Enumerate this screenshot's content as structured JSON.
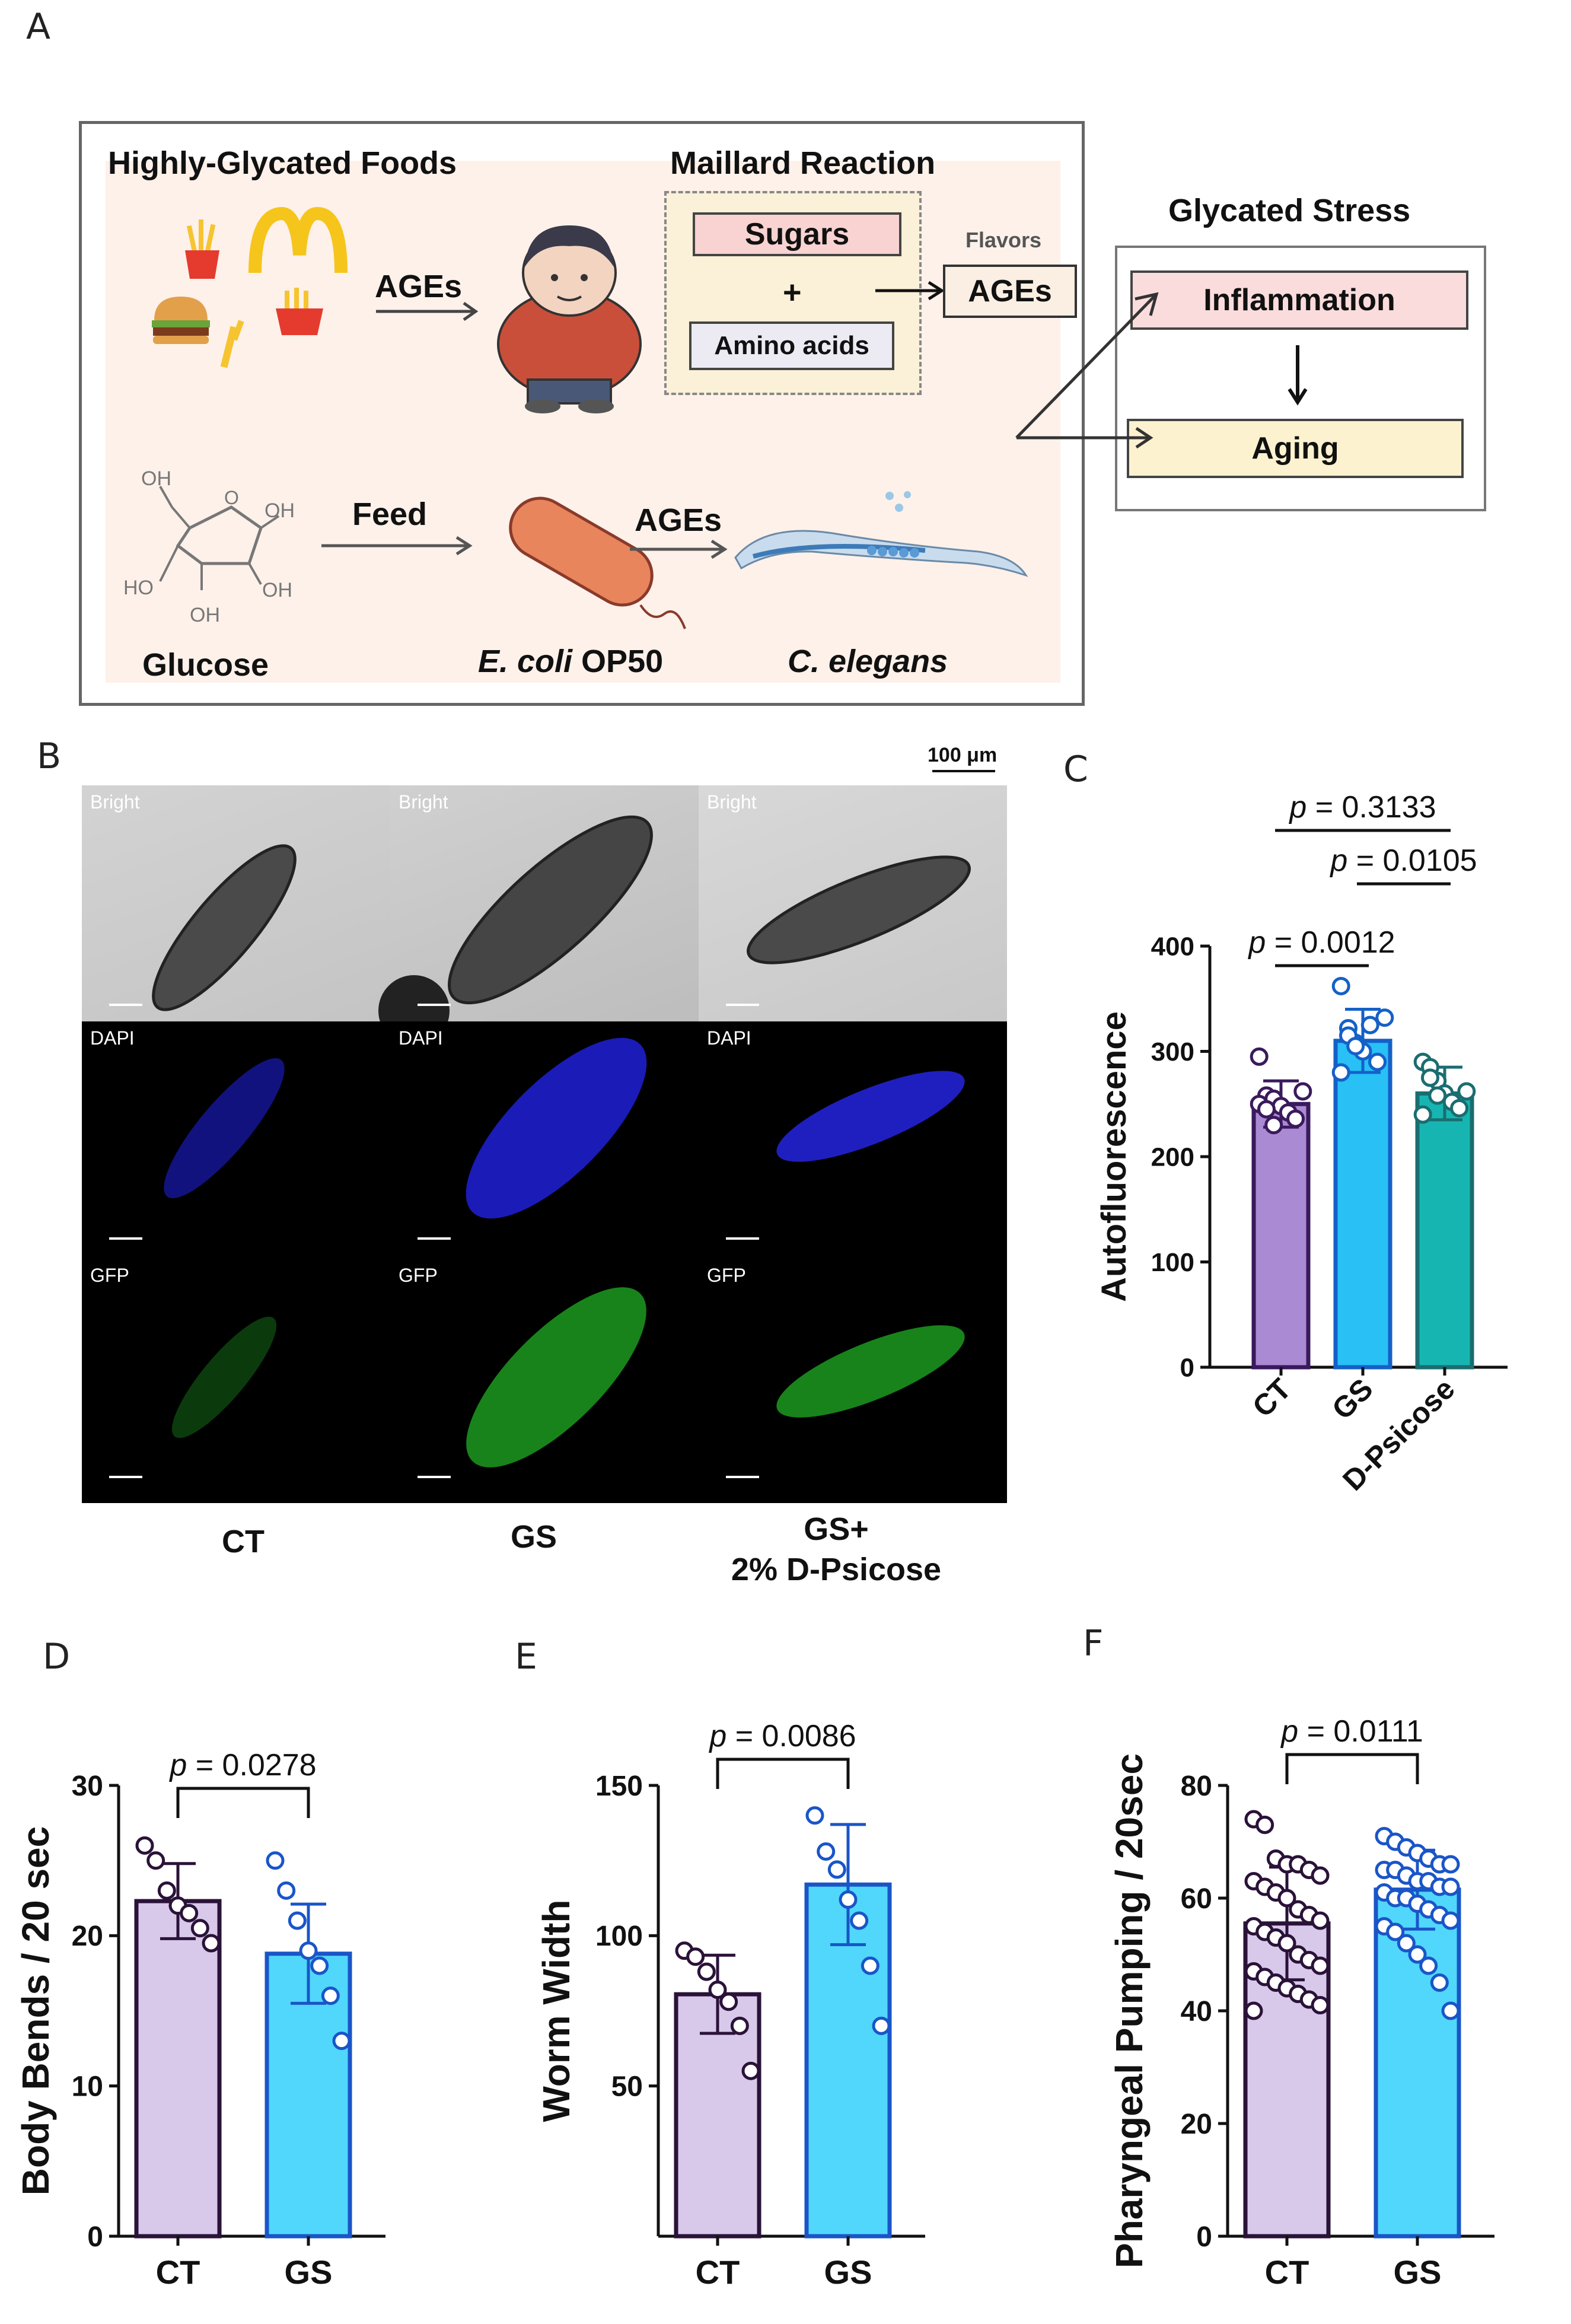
{
  "panel_letters": {
    "a": "A",
    "b": "B",
    "c": "C",
    "d": "D",
    "e": "E",
    "f": "F"
  },
  "panel_a": {
    "foods_title": "Highly-Glycated Foods",
    "maillard_title": "Maillard Reaction",
    "stress_title": "Glycated Stress",
    "ages_arrow_label": "AGEs",
    "sugars": "Sugars",
    "plus": "+",
    "amino_acids": "Amino acids",
    "flavors": "Flavors",
    "ages_box": "AGEs",
    "inflammation": "Inflammation",
    "aging": "Aging",
    "feed": "Feed",
    "ages_worm_label": "AGEs",
    "glucose": "Glucose",
    "ecoli_italic": "E. coli",
    "ecoli_rest": " OP50",
    "celegans": "C. elegans",
    "mol": {
      "oh_top": "OH",
      "oh_right_top": "OH",
      "ho_left": "HO",
      "oh_right_bottom": "OH",
      "oh_bottom": "OH",
      "ring_o": "O"
    },
    "colors": {
      "bg": "#fdf1ea",
      "sugars": "#f8d3d2",
      "amino": "#ecebf4",
      "ages": "#fbefe3",
      "inflammation": "#fbdcdc",
      "aging": "#fdf2cf"
    }
  },
  "panel_b": {
    "scale_label": "100 μm",
    "rows": [
      "Bright",
      "DAPI",
      "GFP"
    ],
    "conditions": [
      "CT",
      "GS",
      "GS+\n2% D-Psicose"
    ]
  },
  "chart_data": [
    {
      "id": "C",
      "type": "bar",
      "ylabel": "Autofluorescence",
      "ylim": [
        0,
        400
      ],
      "yticks": [
        0,
        100,
        200,
        300,
        400
      ],
      "categories": [
        "CT",
        "GS",
        "D-Psicose"
      ],
      "values": [
        250,
        310,
        260
      ],
      "errors": [
        22,
        30,
        25
      ],
      "colors": [
        "#a98ad3",
        "#28c0f5",
        "#17b5b2"
      ],
      "edge_colors": [
        "#3a1a5c",
        "#1560c8",
        "#1a6d70"
      ],
      "points": [
        [
          295,
          258,
          255,
          248,
          242,
          236,
          262,
          250,
          245,
          230
        ],
        [
          362,
          322,
          308,
          300,
          325,
          290,
          332,
          280,
          315,
          305
        ],
        [
          290,
          285,
          272,
          260,
          252,
          246,
          262,
          240,
          275,
          258
        ]
      ],
      "annotations": [
        {
          "p": "p",
          "text": " = 0.0012",
          "from": 0,
          "to": 1
        },
        {
          "p": "p",
          "text": " = 0.0105",
          "from": 1,
          "to": 2
        },
        {
          "p": "p",
          "text": " = 0.3133",
          "from": 0,
          "to": 2
        }
      ]
    },
    {
      "id": "D",
      "type": "bar",
      "ylabel": "Body Bends / 20 sec",
      "ylim": [
        0,
        30
      ],
      "yticks": [
        0,
        10,
        20,
        30
      ],
      "categories": [
        "CT",
        "GS"
      ],
      "values": [
        22.3,
        18.8
      ],
      "errors": [
        2.5,
        3.3
      ],
      "colors": [
        "#d8c9eb",
        "#50d7fb"
      ],
      "edge_colors": [
        "#2a1238",
        "#1a55c8"
      ],
      "points": [
        [
          26,
          25,
          23,
          22,
          21.5,
          20.5,
          19.5
        ],
        [
          25,
          23,
          21,
          19,
          18,
          16,
          13
        ]
      ],
      "annotations": [
        {
          "p": "p",
          "text": " = 0.0278",
          "from": 0,
          "to": 1
        }
      ]
    },
    {
      "id": "E",
      "type": "bar",
      "ylabel": "Worm Width",
      "ylim": [
        0,
        150
      ],
      "yticks": [
        50,
        100,
        150
      ],
      "categories": [
        "CT",
        "GS"
      ],
      "values": [
        80.5,
        117
      ],
      "errors": [
        13,
        20
      ],
      "colors": [
        "#d8c9eb",
        "#50d7fb"
      ],
      "edge_colors": [
        "#2a1238",
        "#1a55c8"
      ],
      "points": [
        [
          95,
          93,
          88,
          82,
          78,
          70,
          55
        ],
        [
          140,
          128,
          122,
          112,
          105,
          90,
          70
        ]
      ],
      "annotations": [
        {
          "p": "p",
          "text": " = 0.0086",
          "from": 0,
          "to": 1
        }
      ]
    },
    {
      "id": "F",
      "type": "bar",
      "ylabel": "Pharyngeal Pumping / 20sec",
      "ylim": [
        0,
        80
      ],
      "yticks": [
        0,
        20,
        40,
        60,
        80
      ],
      "categories": [
        "CT",
        "GS"
      ],
      "values": [
        55.5,
        61.5
      ],
      "errors": [
        10,
        7
      ],
      "colors": [
        "#d8c9eb",
        "#50d7fb"
      ],
      "edge_colors": [
        "#2a1238",
        "#1a55c8"
      ],
      "points": [
        [
          74,
          73,
          67,
          66,
          66,
          65,
          64,
          63,
          62,
          61,
          60,
          58,
          57,
          56,
          55,
          54,
          53,
          52,
          50,
          49,
          48,
          47,
          46,
          45,
          44,
          43,
          42,
          41,
          40
        ],
        [
          71,
          70,
          69,
          68,
          67,
          66,
          66,
          65,
          65,
          64,
          63,
          63,
          62,
          62,
          61,
          60,
          60,
          59,
          58,
          57,
          56,
          55,
          54,
          52,
          50,
          48,
          45,
          40
        ]
      ],
      "annotations": [
        {
          "p": "p",
          "text": " = 0.0111",
          "from": 0,
          "to": 1
        }
      ]
    }
  ]
}
